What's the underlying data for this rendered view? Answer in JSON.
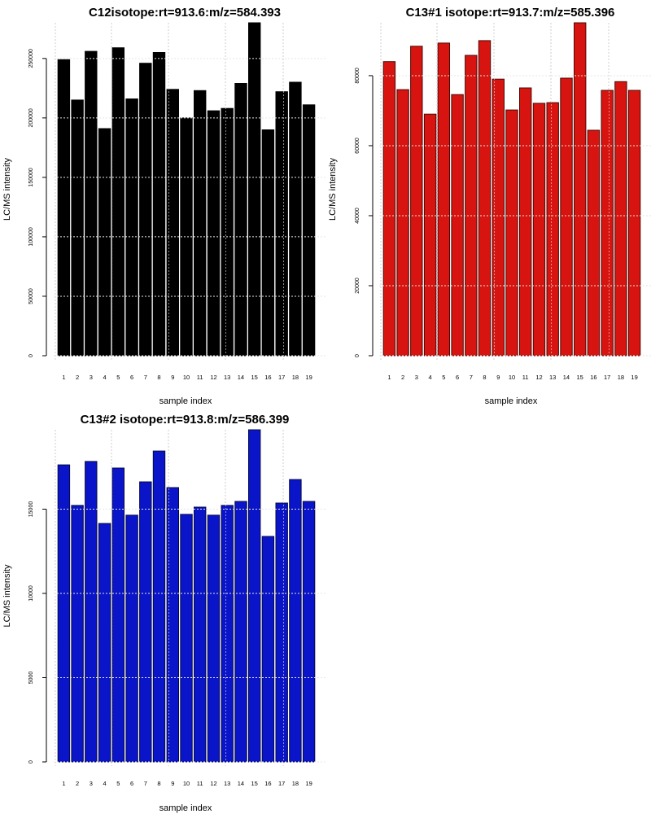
{
  "chart_data": [
    {
      "type": "bar",
      "title": "C12isotope:rt=913.6:m/z=584.393",
      "xlabel": "sample index",
      "ylabel": "LC/MS intensity",
      "categories": [
        "1",
        "2",
        "3",
        "4",
        "5",
        "6",
        "7",
        "8",
        "9",
        "10",
        "11",
        "12",
        "13",
        "14",
        "15",
        "16",
        "17",
        "18",
        "19"
      ],
      "values": [
        249000,
        215000,
        256000,
        191000,
        259000,
        216000,
        246000,
        255000,
        224000,
        200000,
        223000,
        206000,
        208000,
        229000,
        280000,
        190000,
        222000,
        230000,
        211000
      ],
      "yticks": [
        0,
        50000,
        100000,
        150000,
        200000,
        250000
      ],
      "ytick_labels": [
        "0",
        "50000",
        "100000",
        "150000",
        "200000",
        "250000"
      ],
      "ylim": [
        0,
        280000
      ],
      "grid": true,
      "fill_color": "#000000",
      "border_color": "#000000"
    },
    {
      "type": "bar",
      "title": "C13#1 isotope:rt=913.7:m/z=585.396",
      "xlabel": "sample index",
      "ylabel": "LC/MS intensity",
      "categories": [
        "1",
        "2",
        "3",
        "4",
        "5",
        "6",
        "7",
        "8",
        "9",
        "10",
        "11",
        "12",
        "13",
        "14",
        "15",
        "16",
        "17",
        "18",
        "19"
      ],
      "values": [
        84000,
        76000,
        88400,
        69000,
        89300,
        74600,
        85800,
        90000,
        79000,
        70200,
        76500,
        72100,
        72300,
        79300,
        95100,
        64400,
        75800,
        78300,
        75800
      ],
      "yticks": [
        0,
        20000,
        40000,
        60000,
        80000
      ],
      "ytick_labels": [
        "0",
        "20000",
        "40000",
        "60000",
        "80000"
      ],
      "ylim": [
        0,
        95100
      ],
      "grid": true,
      "fill_color": "#d7140f",
      "border_color": "#4a0a06"
    },
    {
      "type": "bar",
      "title": "C13#2 isotope:rt=913.8:m/z=586.399",
      "xlabel": "sample index",
      "ylabel": "LC/MS intensity",
      "categories": [
        "1",
        "2",
        "3",
        "4",
        "5",
        "6",
        "7",
        "8",
        "9",
        "10",
        "11",
        "12",
        "13",
        "14",
        "15",
        "16",
        "17",
        "18",
        "19"
      ],
      "values": [
        17630,
        15220,
        17830,
        14150,
        17440,
        14640,
        16620,
        18450,
        16280,
        14690,
        15120,
        14640,
        15220,
        15460,
        19710,
        13380,
        15360,
        16760,
        15460
      ],
      "yticks": [
        0,
        5000,
        10000,
        15000
      ],
      "ytick_labels": [
        "0",
        "5000",
        "10000",
        "15000"
      ],
      "ylim": [
        0,
        19710
      ],
      "grid": true,
      "fill_color": "#0a14c8",
      "border_color": "#050a45"
    }
  ]
}
